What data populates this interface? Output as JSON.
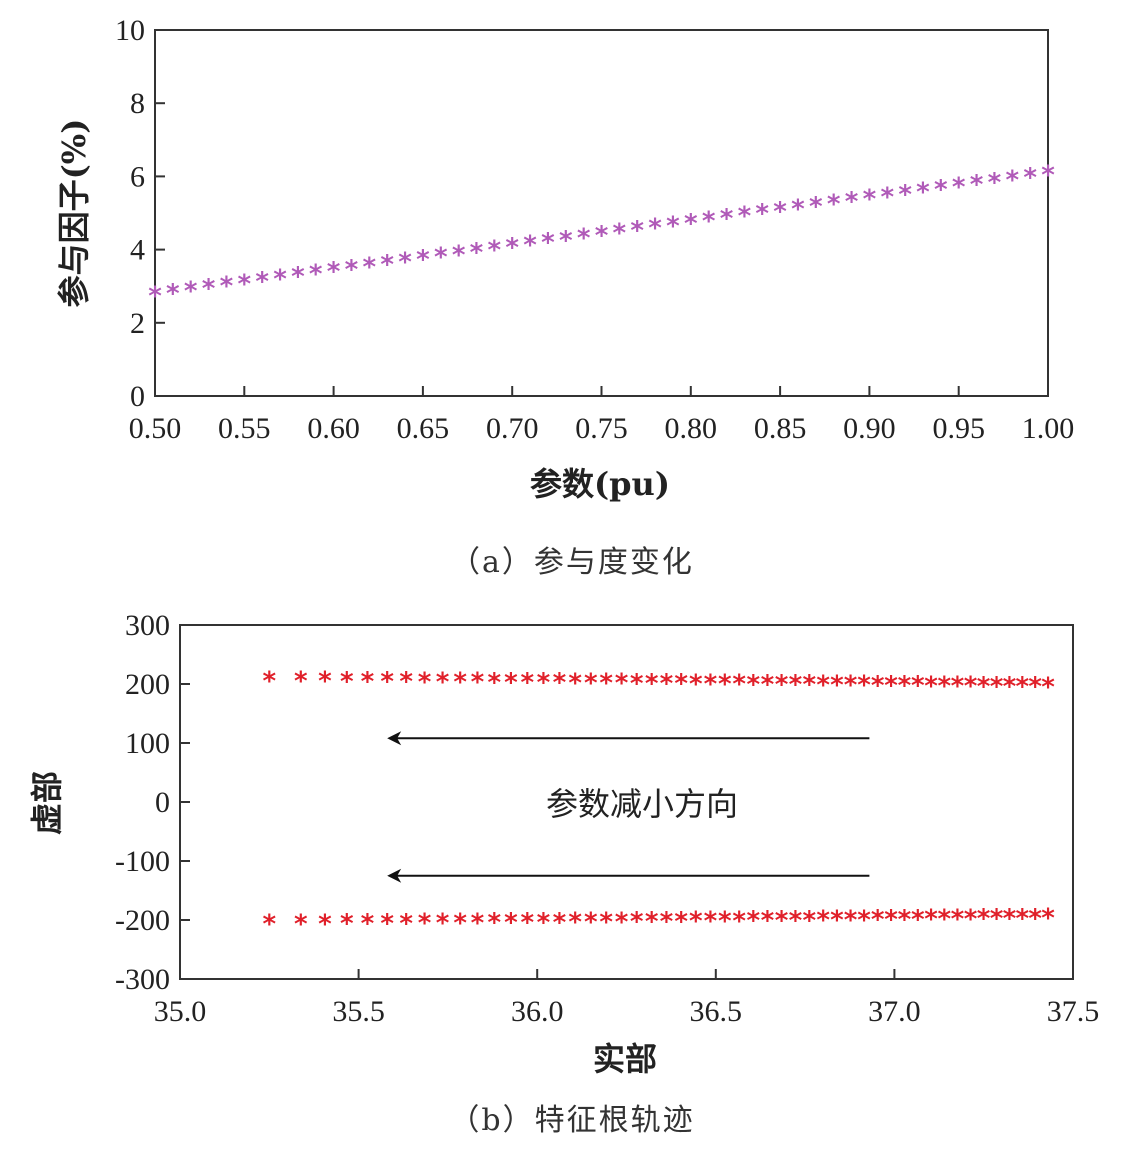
{
  "chart_data": [
    {
      "type": "scatter",
      "caption": "（a）参与度变化",
      "xlabel": "参数(pu)",
      "ylabel": "参与因子(%)",
      "xlim": [
        0.5,
        1.0
      ],
      "ylim": [
        0,
        10
      ],
      "xticks": [
        "0.50",
        "0.55",
        "0.60",
        "0.65",
        "0.70",
        "0.75",
        "0.80",
        "0.85",
        "0.90",
        "0.95",
        "1.00"
      ],
      "yticks": [
        "0",
        "2",
        "4",
        "6",
        "8",
        "10"
      ],
      "marker": "*",
      "color": "#b05ab8",
      "series": [
        {
          "x_start": 0.5,
          "x_end": 1.0,
          "count": 51,
          "y_start": 2.75,
          "y_end": 6.05
        }
      ],
      "grid": false
    },
    {
      "type": "scatter",
      "caption": "（b）特征根轨迹",
      "xlabel": "实部",
      "ylabel": "虚部",
      "xlim": [
        35.0,
        37.5
      ],
      "ylim": [
        -300,
        300
      ],
      "xticks": [
        "35.0",
        "35.5",
        "36.0",
        "36.5",
        "37.0",
        "37.5"
      ],
      "yticks": [
        "300",
        "200",
        "100",
        "0",
        "-100",
        "-200",
        "-300"
      ],
      "marker": "*",
      "color": "#e0202a",
      "annotation": "参数减小方向",
      "arrows": [
        {
          "y": 108,
          "from_x": 36.93,
          "to_x": 35.58
        },
        {
          "y": -125,
          "from_x": 36.93,
          "to_x": 35.58
        }
      ],
      "series": [
        {
          "x_start": 35.25,
          "x_end": 37.43,
          "count": 51,
          "y_start": 206,
          "y_end": 196
        },
        {
          "x_start": 35.25,
          "x_end": 37.43,
          "count": 51,
          "y_start": -206,
          "y_end": -196
        }
      ],
      "grid": false
    }
  ]
}
